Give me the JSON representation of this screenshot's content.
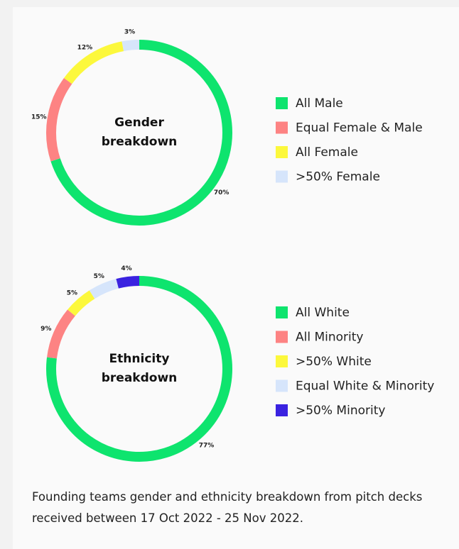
{
  "chart_data": [
    {
      "type": "donut",
      "center_label": "Gender breakdown",
      "categories": [
        "All Male",
        "Equal Female & Male",
        "All Female",
        ">50% Female"
      ],
      "values": [
        70,
        15,
        12,
        3
      ],
      "value_labels": [
        "70%",
        "15%",
        "12%",
        "3%"
      ],
      "colors": [
        "#0ee46e",
        "#fd8383",
        "#fcf83c",
        "#d6e5fb"
      ]
    },
    {
      "type": "donut",
      "center_label": "Ethnicity breakdown",
      "categories": [
        "All White",
        "All Minority",
        ">50% White",
        "Equal White & Minority",
        ">50% Minority"
      ],
      "values": [
        77,
        9,
        5,
        5,
        4
      ],
      "value_labels": [
        "77%",
        "9%",
        "5%",
        "5%",
        "4%"
      ],
      "colors": [
        "#0ee46e",
        "#fd8383",
        "#fcf83c",
        "#d6e5fb",
        "#3a22e0"
      ]
    }
  ],
  "caption": "Founding teams gender and ethnicity breakdown from pitch decks received between 17 Oct 2022 - 25 Nov 2022."
}
